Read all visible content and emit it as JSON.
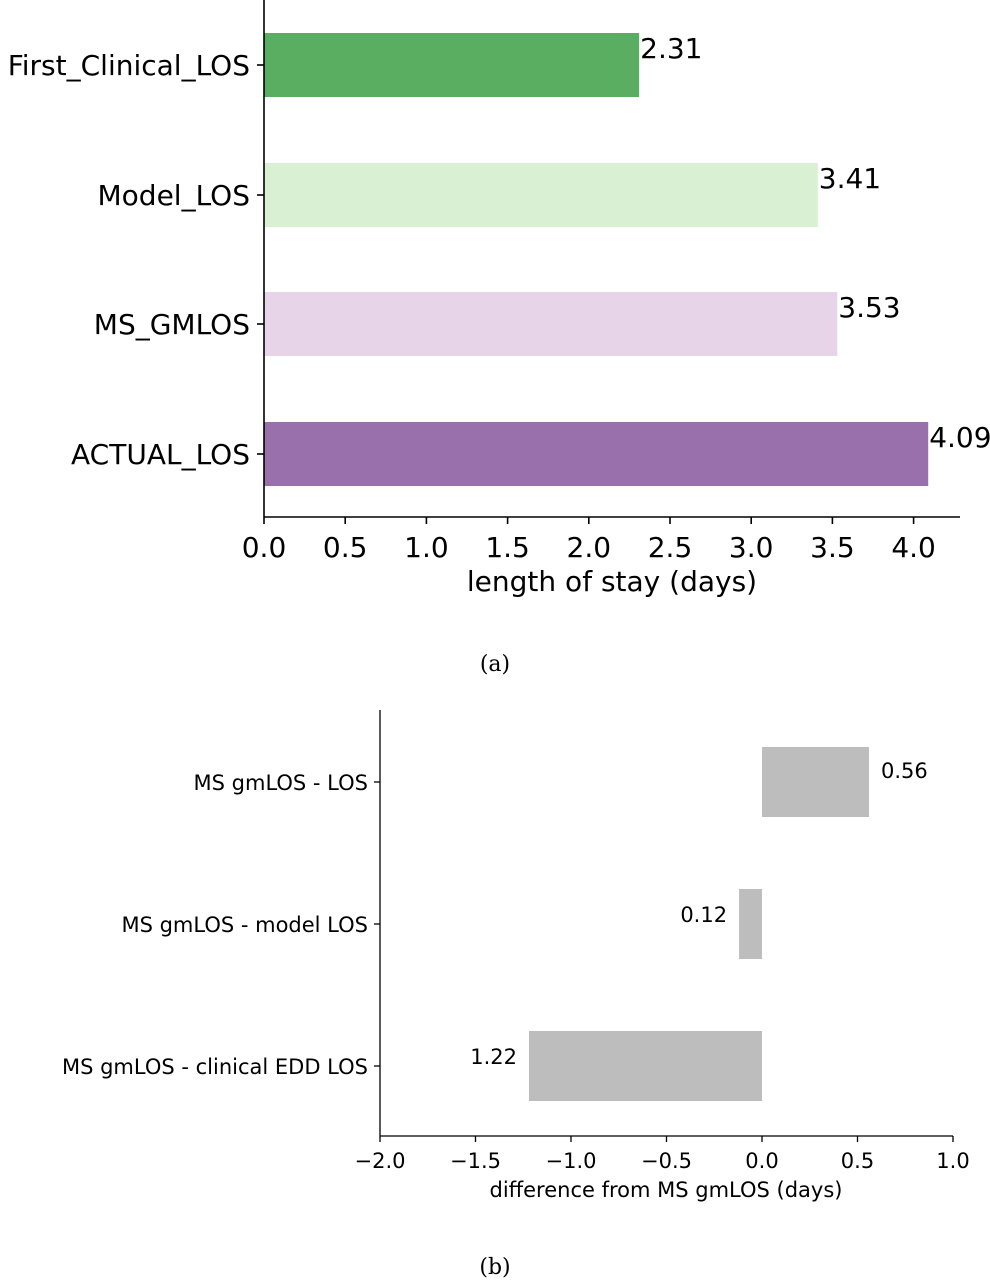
{
  "captions": {
    "a": "(a)",
    "b": "(b)"
  },
  "chart_data": [
    {
      "type": "bar",
      "orientation": "horizontal",
      "categories": [
        "First_Clinical_LOS",
        "Model_LOS",
        "MS_GMLOS",
        "ACTUAL_LOS"
      ],
      "values": [
        2.31,
        3.41,
        3.53,
        4.09
      ],
      "value_labels": [
        "2.31",
        "3.41",
        "3.53",
        "4.09"
      ],
      "colors": [
        "#5aae61",
        "#d9f0d3",
        "#e7d4e8",
        "#9970ab"
      ],
      "title": "",
      "xlabel": "length of stay (days)",
      "ylabel": "",
      "xlim": [
        0,
        4.3
      ],
      "xticks": [
        0.0,
        0.5,
        1.0,
        1.5,
        2.0,
        2.5,
        3.0,
        3.5,
        4.0
      ],
      "xtick_labels": [
        "0.0",
        "0.5",
        "1.0",
        "1.5",
        "2.0",
        "2.5",
        "3.0",
        "3.5",
        "4.0"
      ],
      "grid": false,
      "legend": "none"
    },
    {
      "type": "bar",
      "orientation": "horizontal",
      "categories": [
        "MS gmLOS - LOS",
        "MS gmLOS - model LOS",
        "MS gmLOS - clinical EDD LOS"
      ],
      "values": [
        0.56,
        -0.12,
        -1.22
      ],
      "value_labels": [
        "0.56",
        "0.12",
        "1.22"
      ],
      "colors": [
        "#bdbdbd",
        "#bdbdbd",
        "#bdbdbd"
      ],
      "title": "",
      "xlabel": "difference from MS gmLOS (days)",
      "ylabel": "",
      "xlim": [
        -2.0,
        1.0
      ],
      "xticks": [
        -2.0,
        -1.5,
        -1.0,
        -0.5,
        0.0,
        0.5,
        1.0
      ],
      "xtick_labels": [
        "−2.0",
        "−1.5",
        "−1.0",
        "−0.5",
        "0.0",
        "0.5",
        "1.0"
      ],
      "grid": false,
      "legend": "none"
    }
  ]
}
